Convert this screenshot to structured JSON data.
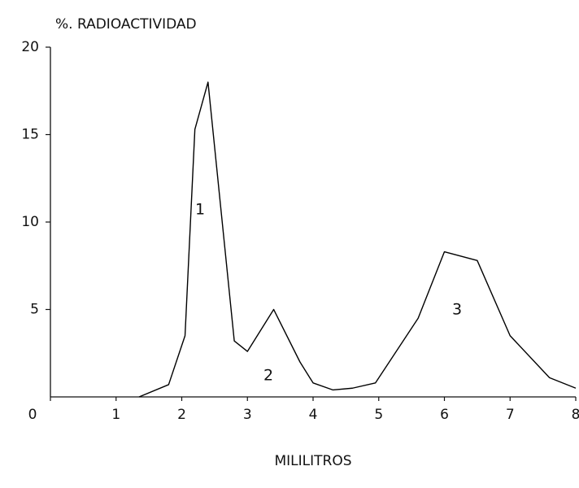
{
  "chart_data": {
    "type": "line",
    "title": "%. RADIOACTIVIDAD",
    "x_label": "MILILITROS",
    "x": [
      1.35,
      1.8,
      2.05,
      2.2,
      2.4,
      2.8,
      3.0,
      3.4,
      3.8,
      4.0,
      4.3,
      4.6,
      4.95,
      5.6,
      6.0,
      6.5,
      7.0,
      7.6,
      8.0
    ],
    "series": [
      {
        "color": "#000000",
        "values": [
          0,
          0.7,
          3.5,
          15.3,
          18,
          3.2,
          2.6,
          5,
          2,
          0.8,
          0.4,
          0.5,
          0.8,
          4.5,
          8.3,
          7.8,
          3.5,
          1.1,
          0.5
        ]
      }
    ],
    "xlim": [
      0,
      8
    ],
    "xticks": [
      0,
      1,
      2,
      3,
      4,
      5,
      6,
      7,
      8
    ],
    "ylim": [
      0,
      20
    ],
    "yticks": [
      5,
      10,
      15,
      20
    ],
    "annotations": [
      "1",
      "2",
      "3"
    ],
    "grid": false
  }
}
